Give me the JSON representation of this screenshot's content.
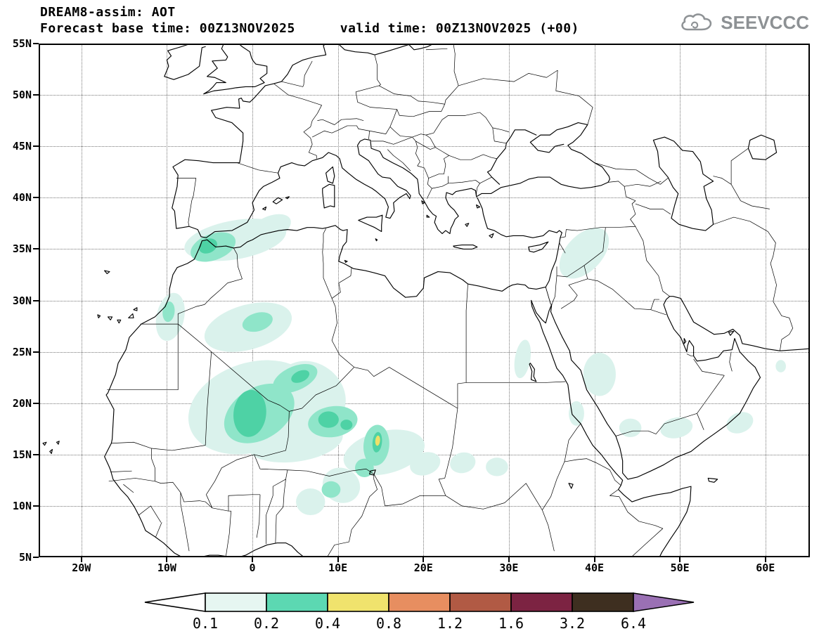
{
  "header": {
    "title": "DREAM8-assim: AOT",
    "base_time_label": "Forecast base time: 00Z13NOV2025",
    "valid_time_label": "valid time: 00Z13NOV2025 (+00)",
    "logo_text": "SEEVCCC"
  },
  "map": {
    "lon_min": -25,
    "lon_max": 65.2,
    "lat_min": 5,
    "lat_max": 55,
    "grid_color": "#777777",
    "x_ticks": [
      {
        "value": -20,
        "label": "20W"
      },
      {
        "value": -10,
        "label": "10W"
      },
      {
        "value": 0,
        "label": "0"
      },
      {
        "value": 10,
        "label": "10E"
      },
      {
        "value": 20,
        "label": "20E"
      },
      {
        "value": 30,
        "label": "30E"
      },
      {
        "value": 40,
        "label": "40E"
      },
      {
        "value": 50,
        "label": "50E"
      },
      {
        "value": 60,
        "label": "60E"
      }
    ],
    "y_ticks": [
      {
        "value": 55,
        "label": "55N"
      },
      {
        "value": 50,
        "label": "50N"
      },
      {
        "value": 45,
        "label": "45N"
      },
      {
        "value": 40,
        "label": "40N"
      },
      {
        "value": 35,
        "label": "35N"
      },
      {
        "value": 30,
        "label": "30N"
      },
      {
        "value": 25,
        "label": "25N"
      },
      {
        "value": 20,
        "label": "20N"
      },
      {
        "value": 15,
        "label": "15N"
      },
      {
        "value": 10,
        "label": "10N"
      },
      {
        "value": 5,
        "label": "5N"
      }
    ]
  },
  "chart_data": {
    "type": "heatmap",
    "subtype": "filled-contour-geographic-map",
    "title": "DREAM8-assim: AOT",
    "model": "DREAM8-assim",
    "variable": "AOT (aerosol optical thickness)",
    "forecast_base_time": "00Z13NOV2025",
    "valid_time": "00Z13NOV2025",
    "lead_time": "+00",
    "lon_range": [
      -25,
      65.2
    ],
    "lat_range": [
      5,
      55
    ],
    "grid": "dotted, every 10 deg lon / 5 deg lat",
    "legend_position": "bottom",
    "contour_levels": [
      0.1,
      0.2,
      0.4,
      0.8,
      1.2,
      1.6,
      3.2,
      6.4
    ],
    "shade_colors": {
      "pale": "#daf2ec",
      "light": "#8fe5c9",
      "mid": "#4ed2a5",
      "yellow": "#eee068"
    },
    "aot_regions": [
      {
        "name": "alboran-maghreb-coast",
        "lon": -2.0,
        "lat": 35.9,
        "rx": 6.0,
        "ry": 1.9,
        "rot": -8,
        "shade": "pale",
        "aot": "0.1-0.2"
      },
      {
        "name": "alboran-maghreb-coast-east",
        "lon": 2.0,
        "lat": 37.0,
        "rx": 2.6,
        "ry": 1.2,
        "rot": -18,
        "shade": "pale",
        "aot": "0.1-0.2"
      },
      {
        "name": "gibraltar-strait",
        "lon": -4.6,
        "lat": 35.2,
        "rx": 2.7,
        "ry": 1.3,
        "rot": -15,
        "shade": "light",
        "aot": "0.2-0.4"
      },
      {
        "name": "gibraltar-core",
        "lon": -5.2,
        "lat": 35.3,
        "rx": 1.1,
        "ry": 0.7,
        "rot": -15,
        "shade": "mid",
        "aot": "0.2-0.4"
      },
      {
        "name": "wsahara-coast",
        "lon": -9.6,
        "lat": 28.4,
        "rx": 1.6,
        "ry": 2.4,
        "rot": 18,
        "shade": "pale",
        "aot": "0.1-0.2"
      },
      {
        "name": "wsahara-coast-core",
        "lon": -9.8,
        "lat": 28.9,
        "rx": 0.7,
        "ry": 1.0,
        "rot": 10,
        "shade": "light",
        "aot": "0.2-0.4"
      },
      {
        "name": "central-algeria",
        "lon": -0.5,
        "lat": 27.4,
        "rx": 5.2,
        "ry": 2.2,
        "rot": -12,
        "shade": "pale",
        "aot": "0.1-0.2"
      },
      {
        "name": "central-algeria-green",
        "lon": 0.6,
        "lat": 27.9,
        "rx": 1.8,
        "ry": 0.9,
        "rot": -12,
        "shade": "light",
        "aot": "0.2-0.4"
      },
      {
        "name": "mali-sahara-pale",
        "lon": 0.0,
        "lat": 19.6,
        "rx": 7.6,
        "ry": 4.4,
        "rot": -12,
        "shade": "pale",
        "aot": "0.1-0.2"
      },
      {
        "name": "niger-algeria-pale",
        "lon": 6.8,
        "lat": 20.8,
        "rx": 4.2,
        "ry": 3.2,
        "rot": 18,
        "shade": "pale",
        "aot": "0.1-0.2"
      },
      {
        "name": "south-sahel-fringe",
        "lon": 5.0,
        "lat": 16.3,
        "rx": 5.6,
        "ry": 2.0,
        "rot": -6,
        "shade": "pale",
        "aot": "0.1-0.2"
      },
      {
        "name": "mali-plume",
        "lon": 0.8,
        "lat": 19.0,
        "rx": 4.3,
        "ry": 2.6,
        "rot": -22,
        "shade": "light",
        "aot": "0.2-0.4"
      },
      {
        "name": "mali-plume-core",
        "lon": -0.3,
        "lat": 19.0,
        "rx": 1.9,
        "ry": 2.3,
        "rot": 12,
        "shade": "mid",
        "aot": "0.2-0.4"
      },
      {
        "name": "tamanrasset-streak",
        "lon": 5.0,
        "lat": 22.4,
        "rx": 2.7,
        "ry": 1.2,
        "rot": -18,
        "shade": "light",
        "aot": "0.2-0.4"
      },
      {
        "name": "tamanrasset-core",
        "lon": 5.6,
        "lat": 22.6,
        "rx": 1.1,
        "ry": 0.55,
        "rot": -18,
        "shade": "mid",
        "aot": "0.2-0.4"
      },
      {
        "name": "niger-plume",
        "lon": 9.4,
        "lat": 18.2,
        "rx": 2.9,
        "ry": 1.5,
        "rot": -6,
        "shade": "light",
        "aot": "0.2-0.4"
      },
      {
        "name": "niger-plume-core",
        "lon": 8.9,
        "lat": 18.4,
        "rx": 1.2,
        "ry": 0.8,
        "rot": 0,
        "shade": "mid",
        "aot": "0.2-0.4"
      },
      {
        "name": "niger-plume-core-east",
        "lon": 11.0,
        "lat": 17.9,
        "rx": 0.7,
        "ry": 0.5,
        "rot": 0,
        "shade": "mid",
        "aot": "0.2-0.4"
      },
      {
        "name": "chad-band",
        "lon": 15.4,
        "lat": 15.2,
        "rx": 4.8,
        "ry": 2.1,
        "rot": -10,
        "shade": "pale",
        "aot": "0.1-0.2"
      },
      {
        "name": "chad-plume",
        "lon": 14.5,
        "lat": 15.9,
        "rx": 1.5,
        "ry": 2.0,
        "rot": 8,
        "shade": "light",
        "aot": "0.2-0.4"
      },
      {
        "name": "chad-plume-core",
        "lon": 14.6,
        "lat": 16.2,
        "rx": 0.55,
        "ry": 1.0,
        "rot": 8,
        "shade": "mid",
        "aot": "0.2-0.4"
      },
      {
        "name": "chad-hotspot",
        "lon": 14.65,
        "lat": 16.35,
        "rx": 0.28,
        "ry": 0.5,
        "rot": 8,
        "shade": "yellow",
        "aot": "0.4-0.8"
      },
      {
        "name": "lake-chad-green",
        "lon": 13.1,
        "lat": 13.7,
        "rx": 1.1,
        "ry": 0.9,
        "rot": 0,
        "shade": "light",
        "aot": "0.2-0.4"
      },
      {
        "name": "nigeria-ne-pale",
        "lon": 10.4,
        "lat": 12.0,
        "rx": 2.2,
        "ry": 1.7,
        "rot": 10,
        "shade": "pale",
        "aot": "0.1-0.2"
      },
      {
        "name": "nigeria-green",
        "lon": 9.2,
        "lat": 11.6,
        "rx": 1.1,
        "ry": 0.8,
        "rot": 0,
        "shade": "light",
        "aot": "0.2-0.4"
      },
      {
        "name": "nigeria-w-pale",
        "lon": 6.8,
        "lat": 10.4,
        "rx": 1.7,
        "ry": 1.3,
        "rot": 0,
        "shade": "pale",
        "aot": "0.1-0.2"
      },
      {
        "name": "sudan-west-pale",
        "lon": 20.2,
        "lat": 14.1,
        "rx": 1.8,
        "ry": 1.1,
        "rot": -12,
        "shade": "pale",
        "aot": "0.1-0.2"
      },
      {
        "name": "sudan-central-pale",
        "lon": 24.6,
        "lat": 14.2,
        "rx": 1.5,
        "ry": 1.0,
        "rot": -8,
        "shade": "pale",
        "aot": "0.1-0.2"
      },
      {
        "name": "sudan-east-pale",
        "lon": 28.6,
        "lat": 13.8,
        "rx": 1.3,
        "ry": 0.9,
        "rot": 0,
        "shade": "pale",
        "aot": "0.1-0.2"
      },
      {
        "name": "nile-valley-pale",
        "lon": 31.6,
        "lat": 24.3,
        "rx": 0.9,
        "ry": 1.9,
        "rot": 12,
        "shade": "pale",
        "aot": "0.1-0.2"
      },
      {
        "name": "levant-plume",
        "lon": 38.8,
        "lat": 34.6,
        "rx": 3.3,
        "ry": 1.9,
        "rot": -36,
        "shade": "pale",
        "aot": "0.1-0.2"
      },
      {
        "name": "nw-saudi-pale",
        "lon": 40.6,
        "lat": 22.8,
        "rx": 1.9,
        "ry": 2.1,
        "rot": 0,
        "shade": "pale",
        "aot": "0.1-0.2"
      },
      {
        "name": "red-sea-coast-pale",
        "lon": 37.9,
        "lat": 19.0,
        "rx": 0.9,
        "ry": 1.2,
        "rot": 0,
        "shade": "pale",
        "aot": "0.1-0.2"
      },
      {
        "name": "yemen-saudi-pale",
        "lon": 44.2,
        "lat": 17.6,
        "rx": 1.3,
        "ry": 0.9,
        "rot": 0,
        "shade": "pale",
        "aot": "0.1-0.2"
      },
      {
        "name": "dhofar-pale",
        "lon": 49.6,
        "lat": 17.6,
        "rx": 1.9,
        "ry": 1.0,
        "rot": -8,
        "shade": "pale",
        "aot": "0.1-0.2"
      },
      {
        "name": "oman-coast-pale",
        "lon": 57.0,
        "lat": 18.1,
        "rx": 1.6,
        "ry": 1.0,
        "rot": -14,
        "shade": "pale",
        "aot": "0.1-0.2"
      },
      {
        "name": "east-edge-dot",
        "lon": 61.8,
        "lat": 23.6,
        "rx": 0.6,
        "ry": 0.6,
        "rot": 0,
        "shade": "pale",
        "aot": "0.1-0.2"
      }
    ]
  },
  "colorbar": {
    "labels": [
      "0.1",
      "0.2",
      "0.4",
      "0.8",
      "1.2",
      "1.6",
      "3.2",
      "6.4"
    ],
    "segment_colors": [
      "#e6f6f1",
      "#5cd8b2",
      "#f0e36d",
      "#e78e60",
      "#b15a44",
      "#7c2342",
      "#3e2f20"
    ],
    "left_arrow_color": "#ffffff",
    "right_arrow_color": "#9a70b4",
    "outline_color": "#000000"
  }
}
